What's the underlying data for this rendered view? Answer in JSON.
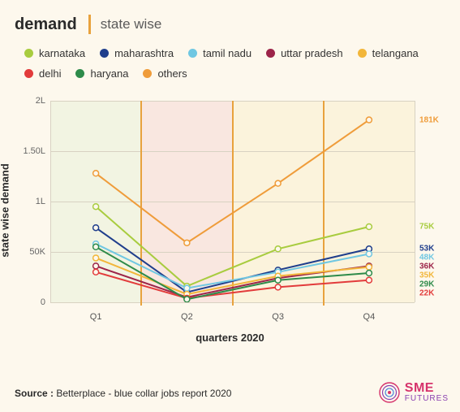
{
  "title": {
    "main": "demand",
    "sub": "state wise"
  },
  "axes": {
    "ylabel": "state wise demand",
    "xlabel": "quarters 2020",
    "ymax": 200000,
    "yticks": [
      {
        "v": 0,
        "label": "0"
      },
      {
        "v": 50000,
        "label": "50K"
      },
      {
        "v": 100000,
        "label": "1L"
      },
      {
        "v": 150000,
        "label": "1.50L"
      },
      {
        "v": 200000,
        "label": "2L"
      }
    ],
    "xticks": [
      "Q1",
      "Q2",
      "Q3",
      "Q4"
    ]
  },
  "bg_bands": [
    {
      "color": "#eaf0d8",
      "opacity": 0.55
    },
    {
      "color": "#f6d9d6",
      "opacity": 0.55
    },
    {
      "color": "#f9efce",
      "opacity": 0.55
    },
    {
      "color": "#f9efce",
      "opacity": 0.55
    }
  ],
  "accent_color": "#e8a23d",
  "grid_color": "#d8d2c2",
  "background_color": "#fdf8ed",
  "series": [
    {
      "name": "karnataka",
      "color": "#a8cc3f",
      "values": [
        95000,
        16000,
        53000,
        75000
      ],
      "end_label": "75K"
    },
    {
      "name": "maharashtra",
      "color": "#1f3e8c",
      "values": [
        74000,
        10000,
        32000,
        53000
      ],
      "end_label": "53K"
    },
    {
      "name": "tamil nadu",
      "color": "#6fc7e2",
      "values": [
        58000,
        14000,
        30000,
        48000
      ],
      "end_label": "48K"
    },
    {
      "name": "uttar pradesh",
      "color": "#9c2449",
      "values": [
        36000,
        5000,
        24000,
        36000
      ],
      "end_label": "36K"
    },
    {
      "name": "telangana",
      "color": "#f2b63a",
      "values": [
        44000,
        8000,
        26000,
        35000
      ],
      "end_label": "35K"
    },
    {
      "name": "delhi",
      "color": "#e23b3b",
      "values": [
        30000,
        4000,
        15000,
        22000
      ],
      "end_label": "22K"
    },
    {
      "name": "haryana",
      "color": "#2e8b4a",
      "values": [
        55000,
        3000,
        22000,
        29000
      ],
      "end_label": "29K"
    },
    {
      "name": "others",
      "color": "#ef9c3a",
      "values": [
        128000,
        59000,
        118000,
        181000
      ],
      "end_label": "181K"
    }
  ],
  "end_label_order": [
    "others",
    "karnataka",
    "maharashtra",
    "tamil nadu",
    "uttar pradesh",
    "telangana",
    "haryana",
    "delhi"
  ],
  "marker_radius": 3.5,
  "line_width": 2,
  "source": {
    "prefix": "Source :",
    "text": "Betterplace - blue collar jobs report 2020"
  },
  "logo": {
    "top": "SME",
    "bottom": "FUTURES",
    "top_color": "#d6336c",
    "bottom_color": "#8a3fb0"
  }
}
